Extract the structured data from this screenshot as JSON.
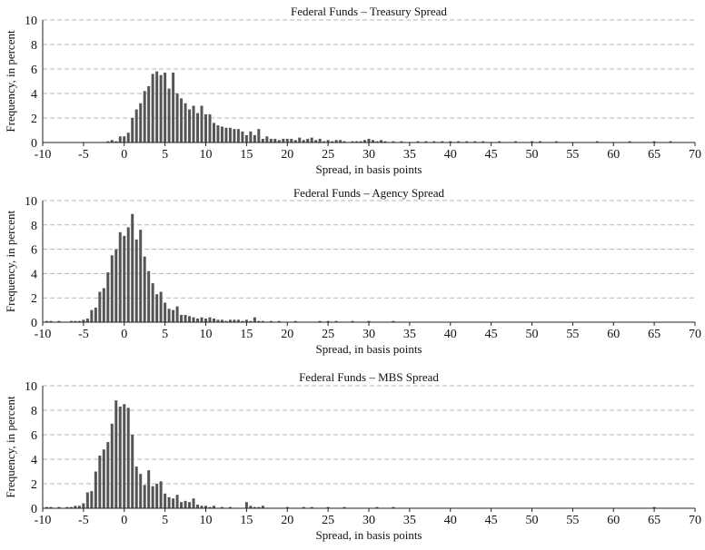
{
  "style": {
    "bar_color": "#555555",
    "grid_color": "#b5b5b5",
    "axis_color": "#222222"
  },
  "chart_data": [
    {
      "type": "bar",
      "title": "Federal Funds – Treasury Spread",
      "xlabel": "Spread, in basis points",
      "ylabel": "Frequency, in percent",
      "xlim": [
        -10,
        70
      ],
      "ylim": [
        0,
        10
      ],
      "xticks": [
        -10,
        -5,
        0,
        5,
        10,
        15,
        20,
        25,
        30,
        35,
        40,
        45,
        50,
        55,
        60,
        65,
        70
      ],
      "yticks": [
        0,
        2,
        4,
        6,
        8,
        10
      ],
      "grid": true,
      "x": [
        -2,
        -1.5,
        -1,
        -0.5,
        0,
        0.5,
        1,
        1.5,
        2,
        2.5,
        3,
        3.5,
        4,
        4.5,
        5,
        5.5,
        6,
        6.5,
        7,
        7.5,
        8,
        8.5,
        9,
        9.5,
        10,
        10.5,
        11,
        11.5,
        12,
        12.5,
        13,
        13.5,
        14,
        14.5,
        15,
        15.5,
        16,
        16.5,
        17,
        17.5,
        18,
        18.5,
        19,
        19.5,
        20,
        20.5,
        21,
        21.5,
        22,
        22.5,
        23,
        23.5,
        24,
        24.5,
        25,
        25.5,
        26,
        26.5,
        27,
        28,
        28.5,
        29,
        29.5,
        30,
        30.5,
        31,
        31.5,
        32,
        33,
        34,
        36,
        37,
        38,
        39,
        40,
        41,
        42,
        43,
        44,
        46,
        48,
        50,
        51,
        53,
        58,
        62,
        65,
        67
      ],
      "values": [
        0.1,
        0.2,
        0.1,
        0.5,
        0.5,
        0.8,
        2.0,
        2.7,
        3.2,
        4.2,
        4.6,
        5.6,
        5.8,
        5.5,
        5.7,
        4.4,
        5.7,
        4.0,
        3.6,
        3.2,
        2.7,
        3.0,
        2.4,
        3.0,
        2.3,
        2.3,
        1.6,
        1.4,
        1.3,
        1.2,
        1.2,
        1.1,
        1.1,
        0.9,
        0.6,
        0.9,
        0.6,
        1.1,
        0.3,
        0.5,
        0.3,
        0.3,
        0.2,
        0.3,
        0.3,
        0.3,
        0.2,
        0.4,
        0.2,
        0.3,
        0.4,
        0.2,
        0.3,
        0.1,
        0.2,
        0.1,
        0.2,
        0.2,
        0.1,
        0.1,
        0.1,
        0.1,
        0.2,
        0.3,
        0.2,
        0.1,
        0.2,
        0.1,
        0.1,
        0.1,
        0.1,
        0.1,
        0.1,
        0.1,
        0.1,
        0.1,
        0.1,
        0.1,
        0.1,
        0.1,
        0.1,
        0.1,
        0.1,
        0.1,
        0.1,
        0.1,
        0.1,
        0.1
      ]
    },
    {
      "type": "bar",
      "title": "Federal Funds – Agency Spread",
      "xlabel": "Spread, in basis points",
      "ylabel": "Frequency, in percent",
      "xlim": [
        -10,
        70
      ],
      "ylim": [
        0,
        10
      ],
      "xticks": [
        -10,
        -5,
        0,
        5,
        10,
        15,
        20,
        25,
        30,
        35,
        40,
        45,
        50,
        55,
        60,
        65,
        70
      ],
      "yticks": [
        0,
        2,
        4,
        6,
        8,
        10
      ],
      "grid": true,
      "x": [
        -9.5,
        -9,
        -8,
        -6.5,
        -6,
        -5.5,
        -5,
        -4.5,
        -4,
        -3.5,
        -3,
        -2.5,
        -2,
        -1.5,
        -1,
        -0.5,
        0,
        0.5,
        1,
        1.5,
        2,
        2.5,
        3,
        3.5,
        4,
        4.5,
        5,
        5.5,
        6,
        6.5,
        7,
        7.5,
        8,
        8.5,
        9,
        9.5,
        10,
        10.5,
        11,
        11.5,
        12,
        12.5,
        13,
        13.5,
        14,
        14.5,
        15,
        15.5,
        16,
        16.5,
        17,
        18,
        19,
        21,
        24,
        25,
        26,
        28,
        30,
        33
      ],
      "values": [
        0.1,
        0.1,
        0.1,
        0.1,
        0.1,
        0.1,
        0.2,
        0.3,
        1.0,
        1.2,
        2.5,
        2.8,
        4.1,
        5.5,
        6.0,
        7.4,
        7.1,
        7.8,
        8.9,
        6.8,
        7.6,
        5.4,
        4.2,
        3.2,
        2.3,
        2.5,
        1.6,
        1.1,
        1.0,
        1.3,
        0.6,
        0.6,
        0.5,
        0.4,
        0.3,
        0.4,
        0.3,
        0.4,
        0.3,
        0.2,
        0.2,
        0.1,
        0.2,
        0.2,
        0.2,
        0.1,
        0.2,
        0.1,
        0.4,
        0.1,
        0.1,
        0.1,
        0.1,
        0.1,
        0.1,
        0.1,
        0.1,
        0.1,
        0.1,
        0.1
      ]
    },
    {
      "type": "bar",
      "title": "Federal Funds – MBS Spread",
      "xlabel": "Spread, in basis points",
      "ylabel": "Frequency, in percent",
      "xlim": [
        -10,
        70
      ],
      "ylim": [
        0,
        10
      ],
      "xticks": [
        -10,
        -5,
        0,
        5,
        10,
        15,
        20,
        25,
        30,
        35,
        40,
        45,
        50,
        55,
        60,
        65,
        70
      ],
      "yticks": [
        0,
        2,
        4,
        6,
        8,
        10
      ],
      "grid": true,
      "x": [
        -9.5,
        -9,
        -8,
        -7,
        -6.5,
        -6,
        -5.5,
        -5,
        -4.5,
        -4,
        -3.5,
        -3,
        -2.5,
        -2,
        -1.5,
        -1,
        -0.5,
        0,
        0.5,
        1,
        1.5,
        2,
        2.5,
        3,
        3.5,
        4,
        4.5,
        5,
        5.5,
        6,
        6.5,
        7,
        7.5,
        8,
        8.5,
        9,
        9.5,
        10,
        10.5,
        11,
        12,
        13,
        15,
        15.5,
        16,
        16.5,
        17,
        20,
        22,
        23,
        25,
        27,
        31,
        33,
        65
      ],
      "values": [
        0.1,
        0.1,
        0.1,
        0.1,
        0.1,
        0.2,
        0.2,
        0.4,
        1.3,
        1.4,
        3.0,
        4.3,
        4.8,
        5.4,
        6.9,
        8.8,
        8.3,
        8.5,
        8.2,
        6.0,
        3.4,
        2.8,
        1.9,
        3.1,
        1.8,
        2.0,
        2.2,
        1.2,
        0.9,
        0.8,
        1.1,
        0.5,
        0.6,
        0.5,
        0.8,
        0.3,
        0.2,
        0.2,
        0.1,
        0.2,
        0.1,
        0.1,
        0.5,
        0.2,
        0.1,
        0.1,
        0.2,
        0.1,
        0.1,
        0.1,
        0.1,
        0.1,
        0.1,
        0.1,
        0.1
      ]
    }
  ]
}
